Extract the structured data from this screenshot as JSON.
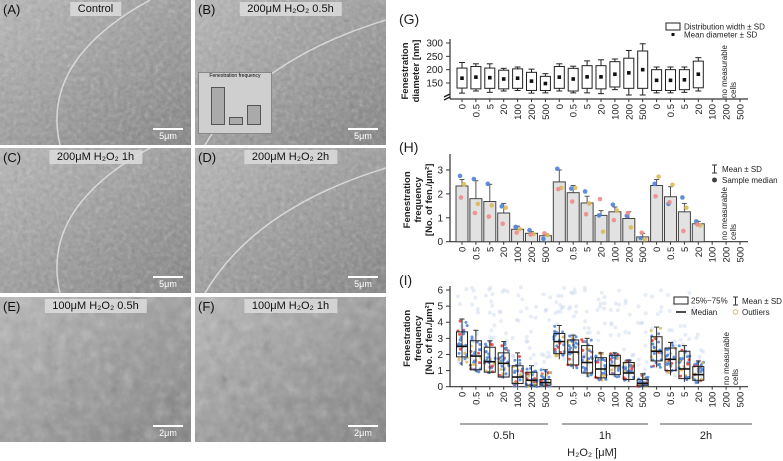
{
  "panels": [
    {
      "label": "(A)",
      "title": "Control",
      "scale": "5μm",
      "tone": "#a4a4a4"
    },
    {
      "label": "(B)",
      "title": "200μM H₂O₂ 0.5h",
      "scale": "5μm",
      "tone": "#a0a0a0",
      "inset_title": "Fenestration frequency"
    },
    {
      "label": "(C)",
      "title": "200μM H₂O₂ 1h",
      "scale": "5μm",
      "tone": "#989898"
    },
    {
      "label": "(D)",
      "title": "200μM H₂O₂ 2h",
      "scale": "5μm",
      "tone": "#a2a2a2"
    },
    {
      "label": "(E)",
      "title": "100μM H₂O₂ 0.5h",
      "scale": "2μm",
      "tone": "#9c9c9c"
    },
    {
      "label": "(F)",
      "title": "100μM H₂O₂ 1h",
      "scale": "2μm",
      "tone": "#a0a0a0"
    }
  ],
  "colors": {
    "blue": "#4f82d6",
    "yellow": "#d9bb5c",
    "pink": "#ec8d8d",
    "red": "#e23c3c",
    "bar_fill": "#e2e2e2",
    "axis": "#333333"
  },
  "chart_data": [
    {
      "panel": "(G)",
      "type": "box",
      "ylabel": "Fenestration diameter [nm]",
      "ylim": [
        90,
        330
      ],
      "yticks": [
        150,
        200,
        250,
        300
      ],
      "categories": [
        "0",
        "0.5",
        "5",
        "20",
        "100",
        "200",
        "500",
        "0",
        "0.5",
        "5",
        "20",
        "100",
        "200",
        "500",
        "0",
        "0.5",
        "5",
        "20",
        "100",
        "200",
        "500"
      ],
      "groups": [
        "0.5h",
        "1h",
        "2h"
      ],
      "legend": [
        "Distribution width ± SD",
        "Mean diameter ± SD"
      ],
      "annotation": "no measurable cells",
      "mean": [
        168,
        172,
        170,
        165,
        168,
        157,
        148,
        172,
        165,
        173,
        173,
        183,
        188,
        200,
        160,
        160,
        162,
        183,
        null,
        null,
        null
      ],
      "box_low": [
        131,
        128,
        130,
        128,
        130,
        122,
        122,
        130,
        120,
        130,
        128,
        135,
        130,
        130,
        122,
        122,
        125,
        132,
        null,
        null,
        null
      ],
      "box_high": [
        206,
        212,
        206,
        198,
        203,
        190,
        175,
        212,
        205,
        215,
        215,
        230,
        243,
        270,
        200,
        200,
        200,
        232,
        null,
        null,
        null
      ],
      "whisker_low": [
        112,
        120,
        115,
        120,
        122,
        112,
        113,
        120,
        113,
        113,
        110,
        125,
        105,
        105,
        113,
        113,
        115,
        120,
        null,
        null,
        null
      ],
      "whisker_high": [
        227,
        222,
        222,
        205,
        210,
        202,
        185,
        222,
        213,
        233,
        237,
        240,
        272,
        297,
        210,
        210,
        210,
        245,
        null,
        null,
        null
      ]
    },
    {
      "panel": "(H)",
      "type": "bar",
      "ylabel": "Fenestration frequency [No. of fen./µm²]",
      "ylim": [
        0,
        3.5
      ],
      "yticks": [
        0,
        1,
        2,
        3
      ],
      "categories": [
        "0",
        "0.5",
        "5",
        "20",
        "100",
        "200",
        "500",
        "0",
        "0.5",
        "5",
        "20",
        "100",
        "200",
        "500",
        "0",
        "0.5",
        "5",
        "20",
        "100",
        "200",
        "500"
      ],
      "legend": [
        "Mean ± SD",
        "Sample median"
      ],
      "annotation": "no measurable cells",
      "mean": [
        2.33,
        1.8,
        1.68,
        1.2,
        0.52,
        0.35,
        0.25,
        2.5,
        2.05,
        1.62,
        1.1,
        1.25,
        0.97,
        0.2,
        2.35,
        1.88,
        1.25,
        0.75,
        null,
        null,
        null
      ],
      "sd_top": [
        2.6,
        2.55,
        2.4,
        1.6,
        0.65,
        0.42,
        0.3,
        3.0,
        2.35,
        1.9,
        1.3,
        1.45,
        1.25,
        0.35,
        2.6,
        2.3,
        1.6,
        0.85,
        null,
        null,
        null
      ],
      "median_blue": [
        2.75,
        2.62,
        2.42,
        1.48,
        0.62,
        0.48,
        0.12,
        3.05,
        2.22,
        2.1,
        1.1,
        1.55,
        1.08,
        0.15,
        2.42,
        1.58,
        1.85,
        0.85,
        null,
        null,
        null
      ],
      "median_yellow": [
        2.4,
        1.58,
        1.52,
        1.42,
        0.52,
        0.32,
        0.28,
        2.25,
        2.25,
        1.6,
        0.42,
        1.3,
        0.6,
        0.1,
        2.72,
        2.38,
        1.42,
        0.68,
        null,
        null,
        null
      ],
      "median_pink": [
        1.85,
        1.2,
        1.05,
        0.75,
        0.38,
        0.3,
        0.35,
        2.2,
        1.68,
        1.15,
        1.78,
        0.9,
        1.2,
        0.38,
        1.9,
        1.65,
        0.45,
        0.72,
        null,
        null,
        null
      ]
    },
    {
      "panel": "(I)",
      "type": "box",
      "ylabel": "Fenestration frequency [No. of fen./µm²]",
      "xlabel": "H₂O₂ [μM]",
      "ylim": [
        0,
        6.5
      ],
      "yticks": [
        0,
        1,
        2,
        3,
        4,
        5,
        6
      ],
      "categories": [
        "0",
        "0.5",
        "5",
        "20",
        "100",
        "200",
        "500",
        "0",
        "0.5",
        "5",
        "20",
        "100",
        "200",
        "500",
        "0",
        "0.5",
        "5",
        "20",
        "100",
        "200",
        "500"
      ],
      "groups": [
        "0.5h",
        "1h",
        "2h"
      ],
      "legend": [
        "25%~75%",
        "Median",
        "Mean ± SD",
        "Outliers"
      ],
      "annotation": "no measurable cells",
      "q1": [
        1.85,
        1.05,
        0.9,
        0.6,
        0.2,
        0.1,
        0.1,
        2.05,
        1.35,
        0.85,
        0.55,
        0.75,
        0.45,
        0.05,
        1.6,
        1.0,
        0.5,
        0.4,
        null,
        null,
        null
      ],
      "q3": [
        3.4,
        2.85,
        2.45,
        2.1,
        1.3,
        0.9,
        0.45,
        3.3,
        2.9,
        2.55,
        1.8,
        1.95,
        1.5,
        0.45,
        3.1,
        2.4,
        2.2,
        1.25,
        null,
        null,
        null
      ],
      "median": [
        2.5,
        1.9,
        1.55,
        1.45,
        0.6,
        0.4,
        0.25,
        2.8,
        2.15,
        1.5,
        1.1,
        1.3,
        0.85,
        0.2,
        2.2,
        1.7,
        1.1,
        0.75,
        null,
        null,
        null
      ],
      "sd_low": [
        1.3,
        0.9,
        0.8,
        0.5,
        0,
        0,
        0,
        1.7,
        1.1,
        0.6,
        0.4,
        0.6,
        0.3,
        0,
        1.2,
        0.7,
        0.3,
        0.2,
        null,
        null,
        null
      ],
      "sd_high": [
        4.2,
        3.5,
        2.85,
        2.8,
        2.1,
        1.3,
        1.05,
        3.8,
        3.2,
        3.0,
        2.1,
        2.1,
        1.65,
        0.8,
        3.7,
        2.75,
        2.55,
        1.6,
        null,
        null,
        null
      ]
    }
  ]
}
